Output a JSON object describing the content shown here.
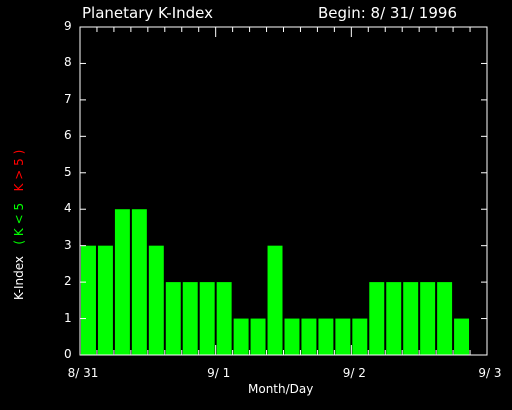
{
  "header": {
    "title": "Planetary K-Index",
    "begin": "Begin: 8/ 31/ 1996"
  },
  "ylabel_parts": [
    {
      "text": "K-Index",
      "color": "#ffffff"
    },
    {
      "text": "( K < 5",
      "color": "#00ff00"
    },
    {
      "text": "K > 5 )",
      "color": "#ff0000"
    }
  ],
  "colors": {
    "background": "#000000",
    "axes": "#ffffff",
    "bar_low": "#00ff00",
    "bar_high": "#ff0000"
  },
  "chart_data": {
    "type": "bar",
    "title": "Planetary K-Index",
    "xlabel": "Month/Day",
    "ylabel": "K-Index ( K < 5 K > 5 )",
    "ylim": [
      0,
      9
    ],
    "yticks": [
      0,
      1,
      2,
      3,
      4,
      5,
      6,
      7,
      8,
      9
    ],
    "xlim_days": [
      0,
      3
    ],
    "xticks": [
      {
        "label": "8/ 31",
        "day": 0
      },
      {
        "label": "9/ 1",
        "day": 1
      },
      {
        "label": "9/ 2",
        "day": 2
      },
      {
        "label": "9/ 3",
        "day": 3
      }
    ],
    "interval_hours": 3,
    "values": [
      3,
      3,
      4,
      4,
      3,
      2,
      2,
      2,
      2,
      1,
      1,
      3,
      1,
      1,
      1,
      1,
      1,
      2,
      2,
      2,
      2,
      2,
      1
    ]
  }
}
